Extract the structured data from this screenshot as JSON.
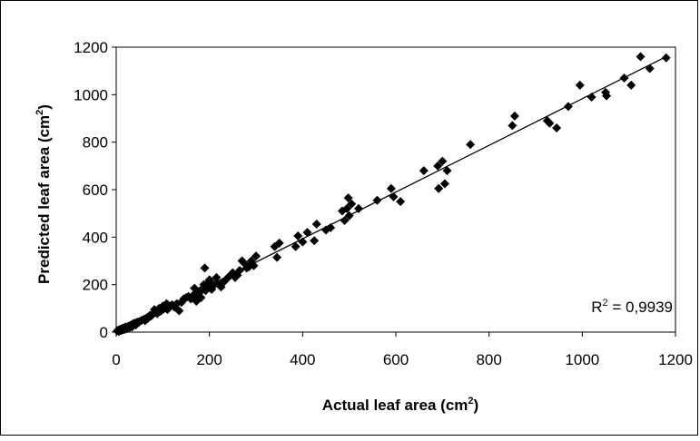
{
  "chart_data": {
    "type": "scatter",
    "xlabel": "Actual leaf area (cm",
    "xlabel_sup": "2",
    "xlabel_end": ")",
    "ylabel": "Predicted leaf area (cm",
    "ylabel_sup": "2",
    "ylabel_end": ")",
    "xlim": [
      0,
      1200
    ],
    "ylim": [
      0,
      1200
    ],
    "xticks": [
      0,
      200,
      400,
      600,
      800,
      1000,
      1200
    ],
    "yticks": [
      0,
      200,
      400,
      600,
      800,
      1000,
      1200
    ],
    "xtick_labels": [
      "0",
      "200",
      "400",
      "600",
      "800",
      "1000",
      "1200"
    ],
    "ytick_labels": [
      "0",
      "200",
      "400",
      "600",
      "800",
      "1000",
      "1200"
    ],
    "annotation": {
      "prefix": "R",
      "sup": "2",
      "suffix": " = 0,9939"
    },
    "grid": false,
    "marker": "diamond",
    "marker_color": "#000000",
    "trendline": {
      "x": [
        0,
        1180
      ],
      "y": [
        0,
        1160
      ]
    },
    "series": [
      {
        "points": [
          [
            2,
            5
          ],
          [
            4,
            8
          ],
          [
            6,
            3
          ],
          [
            8,
            12
          ],
          [
            10,
            6
          ],
          [
            12,
            15
          ],
          [
            14,
            9
          ],
          [
            16,
            18
          ],
          [
            18,
            11
          ],
          [
            20,
            22
          ],
          [
            22,
            14
          ],
          [
            24,
            20
          ],
          [
            26,
            25
          ],
          [
            28,
            18
          ],
          [
            30,
            28
          ],
          [
            32,
            30
          ],
          [
            34,
            22
          ],
          [
            36,
            35
          ],
          [
            38,
            32
          ],
          [
            40,
            38
          ],
          [
            42,
            30
          ],
          [
            45,
            42
          ],
          [
            48,
            40
          ],
          [
            50,
            45
          ],
          [
            55,
            50
          ],
          [
            60,
            55
          ],
          [
            62,
            48
          ],
          [
            65,
            60
          ],
          [
            68,
            58
          ],
          [
            70,
            65
          ],
          [
            72,
            70
          ],
          [
            75,
            68
          ],
          [
            78,
            75
          ],
          [
            80,
            80
          ],
          [
            82,
            95
          ],
          [
            85,
            85
          ],
          [
            88,
            78
          ],
          [
            90,
            90
          ],
          [
            92,
            100
          ],
          [
            95,
            88
          ],
          [
            98,
            92
          ],
          [
            100,
            110
          ],
          [
            102,
            98
          ],
          [
            105,
            105
          ],
          [
            108,
            120
          ],
          [
            110,
            95
          ],
          [
            115,
            110
          ],
          [
            120,
            115
          ],
          [
            125,
            105
          ],
          [
            130,
            120
          ],
          [
            135,
            90
          ],
          [
            140,
            125
          ],
          [
            145,
            140
          ],
          [
            150,
            145
          ],
          [
            155,
            150
          ],
          [
            160,
            140
          ],
          [
            165,
            155
          ],
          [
            168,
            185
          ],
          [
            170,
            160
          ],
          [
            172,
            130
          ],
          [
            175,
            170
          ],
          [
            178,
            165
          ],
          [
            180,
            175
          ],
          [
            182,
            145
          ],
          [
            185,
            180
          ],
          [
            188,
            200
          ],
          [
            190,
            270
          ],
          [
            192,
            175
          ],
          [
            195,
            190
          ],
          [
            198,
            210
          ],
          [
            200,
            220
          ],
          [
            202,
            185
          ],
          [
            205,
            180
          ],
          [
            208,
            195
          ],
          [
            210,
            200
          ],
          [
            215,
            230
          ],
          [
            220,
            200
          ],
          [
            225,
            190
          ],
          [
            230,
            210
          ],
          [
            235,
            220
          ],
          [
            240,
            230
          ],
          [
            245,
            240
          ],
          [
            250,
            250
          ],
          [
            255,
            230
          ],
          [
            260,
            240
          ],
          [
            265,
            260
          ],
          [
            270,
            300
          ],
          [
            275,
            290
          ],
          [
            280,
            270
          ],
          [
            285,
            275
          ],
          [
            290,
            300
          ],
          [
            295,
            280
          ],
          [
            300,
            320
          ],
          [
            340,
            360
          ],
          [
            345,
            315
          ],
          [
            350,
            375
          ],
          [
            385,
            360
          ],
          [
            390,
            405
          ],
          [
            400,
            380
          ],
          [
            410,
            420
          ],
          [
            425,
            385
          ],
          [
            430,
            455
          ],
          [
            450,
            430
          ],
          [
            460,
            440
          ],
          [
            485,
            510
          ],
          [
            490,
            470
          ],
          [
            495,
            520
          ],
          [
            498,
            565
          ],
          [
            500,
            490
          ],
          [
            505,
            540
          ],
          [
            520,
            520
          ],
          [
            560,
            555
          ],
          [
            590,
            605
          ],
          [
            595,
            570
          ],
          [
            610,
            550
          ],
          [
            660,
            680
          ],
          [
            690,
            700
          ],
          [
            692,
            605
          ],
          [
            700,
            720
          ],
          [
            705,
            625
          ],
          [
            710,
            680
          ],
          [
            760,
            790
          ],
          [
            850,
            870
          ],
          [
            855,
            910
          ],
          [
            925,
            890
          ],
          [
            930,
            880
          ],
          [
            945,
            860
          ],
          [
            970,
            950
          ],
          [
            995,
            1040
          ],
          [
            1020,
            990
          ],
          [
            1050,
            1010
          ],
          [
            1052,
            995
          ],
          [
            1090,
            1070
          ],
          [
            1105,
            1040
          ],
          [
            1125,
            1160
          ],
          [
            1145,
            1110
          ],
          [
            1180,
            1155
          ]
        ]
      }
    ]
  }
}
